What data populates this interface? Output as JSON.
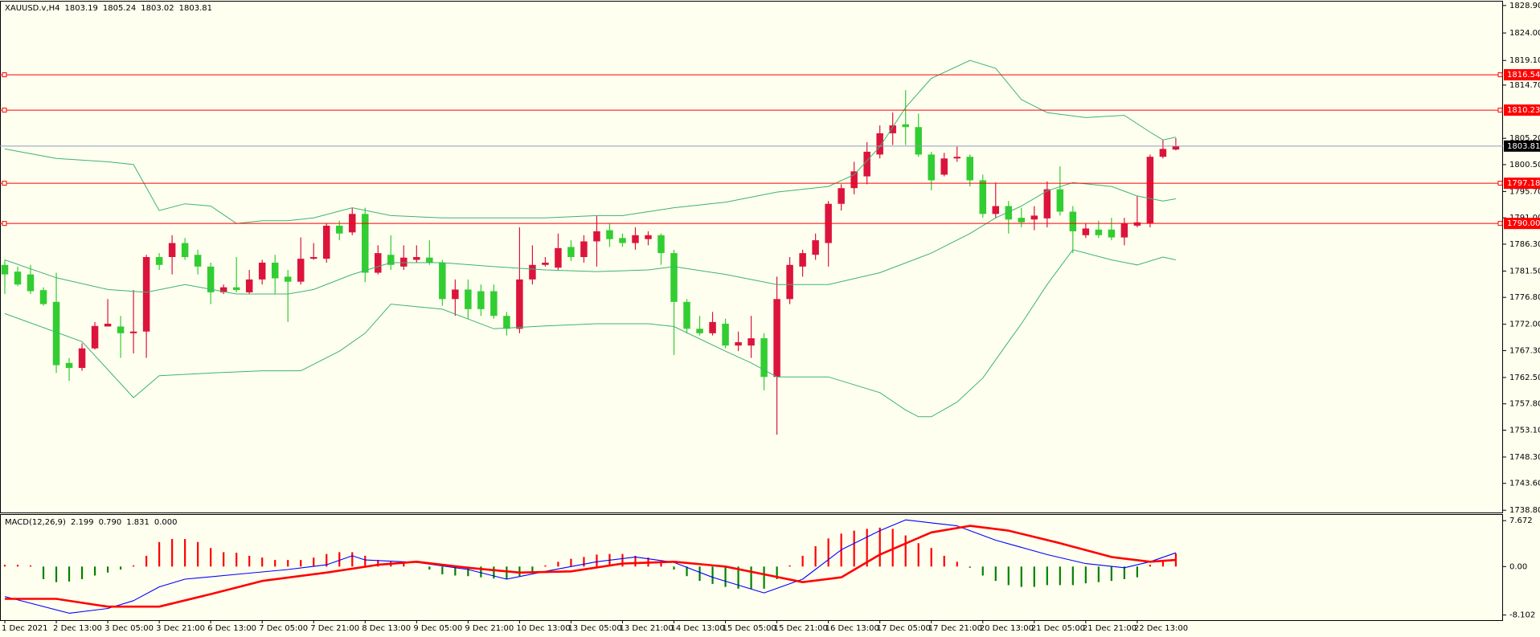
{
  "chart_data": [
    {
      "type": "candlestick",
      "symbol": "XAUUSD.v,H4",
      "header_values": [
        "1803.19",
        "1805.24",
        "1803.02",
        "1803.81"
      ],
      "categories": [
        "1 Dec 2021",
        null,
        null,
        null,
        "2 Dec 13:00",
        null,
        null,
        null,
        "3 Dec 05:00",
        null,
        null,
        null,
        "3 Dec 21:00",
        null,
        null,
        null,
        "6 Dec 13:00",
        null,
        null,
        null,
        "7 Dec 05:00",
        null,
        null,
        null,
        "7 Dec 21:00",
        null,
        null,
        null,
        "8 Dec 13:00",
        null,
        null,
        null,
        "9 Dec 05:00",
        null,
        null,
        null,
        "9 Dec 21:00",
        null,
        null,
        null,
        "10 Dec 13:00",
        null,
        null,
        null,
        "13 Dec 05:00",
        null,
        null,
        null,
        "13 Dec 21:00",
        null,
        null,
        null,
        "14 Dec 13:00",
        null,
        null,
        null,
        "15 Dec 05:00",
        null,
        null,
        null,
        "15 Dec 21:00",
        null,
        null,
        null,
        "16 Dec 13:00",
        null,
        null,
        null,
        "17 Dec 05:00",
        null,
        null,
        null,
        "17 Dec 21:00",
        null,
        null,
        null,
        "20 Dec 13:00",
        null,
        null,
        null,
        "21 Dec 05:00",
        null,
        null,
        null,
        "21 Dec 21:00",
        null,
        null,
        null,
        "22 Dec 13:00",
        null,
        null,
        null
      ],
      "open": [
        1782.6,
        1781.4,
        1780.9,
        1778.1,
        1776.0,
        1765.1,
        1764.2,
        1767.7,
        1771.6,
        1771.6,
        1770.4,
        1770.7,
        1784.0,
        1784.0,
        1786.5,
        1784.4,
        1782.3,
        1777.7,
        1778.6,
        1777.7,
        1780.0,
        1783.0,
        1780.5,
        1779.6,
        1783.7,
        1783.7,
        1789.6,
        1788.4,
        1791.7,
        1781.2,
        1784.4,
        1782.3,
        1783.5,
        1783.9,
        1783.0,
        1776.5,
        1778.2,
        1777.9,
        1777.9,
        1773.5,
        1771.2,
        1780.0,
        1782.6,
        1782.1,
        1785.8,
        1784.0,
        1786.8,
        1788.8,
        1787.4,
        1786.5,
        1787.2,
        1787.9,
        1784.7,
        1776.0,
        1771.2,
        1770.4,
        1772.1,
        1768.2,
        1768.2,
        1769.5,
        1762.6,
        1776.5,
        1782.3,
        1784.4,
        1786.5,
        1793.5,
        1796.3,
        1798.4,
        1802.3,
        1806.1,
        1807.7,
        1807.2,
        1802.3,
        1798.7,
        1801.6,
        1801.9,
        1797.7,
        1791.7,
        1793.1,
        1791.0,
        1790.7,
        1790.9,
        1796.1,
        1792.1,
        1787.9,
        1788.9,
        1788.9,
        1787.5,
        1789.6,
        1790.0,
        1801.9,
        1803.19
      ],
      "high": [
        1783.5,
        1782.3,
        1782.6,
        1778.6,
        1781.2,
        1766.0,
        1768.6,
        1772.4,
        1776.5,
        1773.5,
        1778.1,
        1784.4,
        1784.7,
        1787.9,
        1787.4,
        1785.3,
        1783.0,
        1779.1,
        1784.0,
        1781.7,
        1783.5,
        1784.4,
        1781.7,
        1787.5,
        1786.5,
        1790.0,
        1790.5,
        1792.8,
        1792.8,
        1786.1,
        1787.9,
        1786.1,
        1786.1,
        1787.0,
        1783.5,
        1780.0,
        1780.0,
        1779.1,
        1779.1,
        1774.2,
        1789.3,
        1786.1,
        1784.0,
        1788.2,
        1787.0,
        1787.9,
        1791.4,
        1790.0,
        1788.2,
        1789.3,
        1788.6,
        1788.2,
        1785.3,
        1776.5,
        1773.5,
        1774.2,
        1773.0,
        1770.7,
        1773.5,
        1770.4,
        1780.5,
        1784.0,
        1785.3,
        1788.2,
        1794.0,
        1797.0,
        1801.0,
        1804.5,
        1807.5,
        1809.8,
        1813.8,
        1809.6,
        1802.8,
        1802.6,
        1803.7,
        1802.3,
        1798.7,
        1797.3,
        1794.0,
        1792.8,
        1793.1,
        1797.5,
        1800.2,
        1793.1,
        1790.0,
        1790.5,
        1791.0,
        1791.0,
        1794.9,
        1802.3,
        1804.9,
        1805.24
      ],
      "low": [
        1777.4,
        1778.8,
        1777.4,
        1775.3,
        1763.3,
        1761.9,
        1763.7,
        1767.5,
        1771.6,
        1766.0,
        1766.8,
        1766.0,
        1781.7,
        1780.9,
        1783.5,
        1780.9,
        1775.6,
        1777.4,
        1777.7,
        1777.4,
        1779.1,
        1777.4,
        1772.4,
        1779.1,
        1783.5,
        1783.0,
        1787.0,
        1787.9,
        1779.5,
        1780.9,
        1781.7,
        1781.7,
        1783.0,
        1782.6,
        1775.3,
        1773.5,
        1773.0,
        1773.5,
        1773.0,
        1770.0,
        1770.4,
        1779.1,
        1782.3,
        1781.7,
        1783.3,
        1783.0,
        1782.3,
        1785.8,
        1785.8,
        1785.3,
        1786.1,
        1782.6,
        1766.5,
        1770.4,
        1770.0,
        1770.0,
        1767.7,
        1767.2,
        1766.0,
        1760.2,
        1752.3,
        1775.6,
        1780.5,
        1783.5,
        1782.3,
        1792.3,
        1795.2,
        1797.0,
        1801.6,
        1804.0,
        1804.0,
        1801.9,
        1795.9,
        1798.4,
        1801.0,
        1796.6,
        1791.0,
        1791.0,
        1788.2,
        1789.3,
        1788.8,
        1789.3,
        1791.4,
        1784.7,
        1787.4,
        1787.4,
        1787.0,
        1786.1,
        1789.3,
        1789.3,
        1801.6,
        1803.02
      ],
      "close": [
        1780.9,
        1779.1,
        1777.9,
        1775.6,
        1764.7,
        1764.2,
        1767.7,
        1771.7,
        1772.1,
        1770.4,
        1770.7,
        1784.0,
        1782.6,
        1786.5,
        1784.0,
        1782.3,
        1777.7,
        1778.6,
        1778.1,
        1780.0,
        1783.0,
        1780.2,
        1779.6,
        1783.7,
        1784.0,
        1789.6,
        1788.2,
        1791.7,
        1781.2,
        1784.7,
        1782.6,
        1783.9,
        1784.0,
        1783.0,
        1776.5,
        1778.2,
        1774.7,
        1774.7,
        1773.5,
        1771.2,
        1780.0,
        1782.6,
        1783.0,
        1785.6,
        1784.0,
        1786.8,
        1788.6,
        1787.2,
        1786.5,
        1787.9,
        1787.9,
        1784.7,
        1776.0,
        1771.2,
        1770.4,
        1772.4,
        1768.2,
        1768.8,
        1769.5,
        1762.6,
        1776.5,
        1782.6,
        1784.7,
        1787.0,
        1793.5,
        1796.3,
        1799.3,
        1802.8,
        1806.1,
        1807.5,
        1807.2,
        1802.3,
        1797.7,
        1801.6,
        1801.9,
        1797.7,
        1791.7,
        1793.1,
        1790.7,
        1790.2,
        1791.4,
        1796.1,
        1792.1,
        1788.6,
        1789.1,
        1787.9,
        1787.5,
        1790.0,
        1790.2,
        1801.9,
        1803.3,
        1803.81
      ],
      "up_color": "#dc143c",
      "down_color": "#32cd32",
      "bands": [
        {
          "color": "#3cb371",
          "x": [
            0,
            4,
            8,
            10,
            12,
            14,
            16,
            18,
            20,
            22,
            24,
            27,
            30,
            34,
            38,
            42,
            46,
            48,
            52,
            56,
            60,
            64,
            66,
            68,
            70,
            72,
            75,
            77,
            79,
            81,
            84,
            87,
            89,
            90,
            91
          ],
          "values": [
            1803.3,
            1801.6,
            1801.0,
            1800.5,
            1792.3,
            1793.5,
            1793.1,
            1790.0,
            1790.5,
            1790.5,
            1791.0,
            1792.8,
            1791.4,
            1791.0,
            1791.0,
            1791.0,
            1791.4,
            1791.4,
            1792.8,
            1793.8,
            1795.6,
            1796.6,
            1798.7,
            1803.7,
            1810.7,
            1815.9,
            1819.1,
            1817.7,
            1812.1,
            1809.8,
            1808.9,
            1809.3,
            1806.3,
            1804.9,
            1805.4
          ]
        },
        {
          "color": "#3cb371",
          "x": [
            0,
            4,
            8,
            11,
            14,
            18,
            22,
            24,
            27,
            30,
            34,
            38,
            42,
            46,
            50,
            52,
            56,
            60,
            64,
            68,
            72,
            75,
            77,
            79,
            81,
            83,
            86,
            88,
            90,
            91
          ],
          "values": [
            1783.5,
            1780.3,
            1778.2,
            1777.7,
            1779.1,
            1777.4,
            1777.4,
            1778.2,
            1780.9,
            1783.0,
            1783.0,
            1782.3,
            1781.7,
            1781.4,
            1781.7,
            1782.3,
            1780.9,
            1779.1,
            1779.1,
            1781.2,
            1784.7,
            1788.2,
            1791.0,
            1793.1,
            1795.8,
            1797.3,
            1796.6,
            1794.9,
            1794.0,
            1794.4
          ]
        },
        {
          "color": "#3cb371",
          "x": [
            0,
            6,
            10,
            12,
            16,
            20,
            23,
            26,
            28,
            30,
            34,
            38,
            42,
            46,
            50,
            52,
            56,
            58,
            60,
            64,
            68,
            70,
            71,
            72,
            74,
            76,
            78,
            79,
            81,
            83,
            86,
            88,
            90,
            91
          ],
          "values": [
            1773.9,
            1768.9,
            1758.9,
            1762.8,
            1763.3,
            1763.7,
            1763.7,
            1767.2,
            1770.4,
            1775.6,
            1774.7,
            1771.2,
            1771.7,
            1772.1,
            1772.1,
            1771.6,
            1767.2,
            1765.1,
            1762.6,
            1762.6,
            1759.8,
            1756.7,
            1755.5,
            1755.5,
            1758.1,
            1762.4,
            1768.9,
            1772.1,
            1779.1,
            1785.3,
            1783.5,
            1782.6,
            1784.0,
            1783.5
          ]
        }
      ],
      "levels": [
        1816.54,
        1810.23,
        1797.18,
        {
          "value": 1790,
          "label": "1790.00"
        }
      ],
      "level_color": "#ff0000",
      "current_price": 1803.81,
      "current_color": "#8e9bb4",
      "ylim": [
        1738.4,
        1829.6
      ],
      "yticks": [
        {
          "value": 1828.9,
          "label": "1828.90"
        },
        {
          "value": 1824,
          "label": "1824.00"
        },
        {
          "value": 1819.1,
          "label": "1819.10"
        },
        {
          "value": 1814.7,
          "label": "1814.70"
        },
        {
          "value": 1805.2,
          "label": "1805.20"
        },
        {
          "value": 1800.5,
          "label": "1800.50"
        },
        {
          "value": 1795.7,
          "label": "1795.70"
        },
        {
          "value": 1791,
          "label": "1791.00"
        },
        {
          "value": 1786.3,
          "label": "1786.30"
        },
        {
          "value": 1781.5,
          "label": "1781.50"
        },
        {
          "value": 1776.8,
          "label": "1776.80"
        },
        {
          "value": 1772,
          "label": "1772.00"
        },
        {
          "value": 1767.3,
          "label": "1767.30"
        },
        {
          "value": 1762.5,
          "label": "1762.50"
        },
        {
          "value": 1757.8,
          "label": "1757.80"
        },
        {
          "value": 1753.1,
          "label": "1753.10"
        },
        {
          "value": 1748.3,
          "label": "1748.30"
        },
        {
          "value": 1743.6,
          "label": "1743.60"
        },
        {
          "value": 1738.8,
          "label": "1738.80"
        }
      ]
    },
    {
      "type": "macd",
      "indicator_label": "MACD(12,26,9)",
      "indicator_values": [
        "2.199",
        "0.790",
        "1.831",
        "0.000"
      ],
      "histogram": {
        "up_color": "#ff0000",
        "down_color": "#008000",
        "values": [
          0.3,
          0.3,
          0.2,
          -2.1,
          -2.6,
          -2.5,
          -2.1,
          -1.5,
          -1.0,
          -0.5,
          0.2,
          1.8,
          4.1,
          4.6,
          4.6,
          4.1,
          3.1,
          2.4,
          2.3,
          1.8,
          1.5,
          1.1,
          1.1,
          1.1,
          1.5,
          2.1,
          2.4,
          2.4,
          1.8,
          1.1,
          0.8,
          0.5,
          0.0,
          -0.5,
          -1.3,
          -1.5,
          -1.6,
          -1.8,
          -2.0,
          -2.1,
          -1.6,
          -1.1,
          0.2,
          0.8,
          1.3,
          1.6,
          2.0,
          2.1,
          2.1,
          1.8,
          1.5,
          0.8,
          -0.5,
          -1.6,
          -2.4,
          -2.9,
          -3.4,
          -3.7,
          -3.7,
          -3.7,
          -2.1,
          0.2,
          1.8,
          3.4,
          4.7,
          5.5,
          6.0,
          6.3,
          6.5,
          6.3,
          5.2,
          3.9,
          3.1,
          1.8,
          0.8,
          -0.2,
          -1.5,
          -2.4,
          -3.1,
          -3.4,
          -3.4,
          -3.1,
          -3.1,
          -3.1,
          -2.8,
          -2.6,
          -2.4,
          -2.1,
          -1.8,
          0.3,
          1.1,
          2.2
        ]
      },
      "series": [
        {
          "color": "#0000ff",
          "x": [
            0,
            5,
            8,
            10,
            12,
            14,
            18,
            22,
            25,
            27,
            28,
            32,
            36,
            39,
            42,
            46,
            49,
            52,
            55,
            59,
            62,
            65,
            68,
            70,
            72,
            74,
            77,
            81,
            84,
            87,
            89,
            91
          ],
          "values": [
            -5.0,
            -7.8,
            -7.0,
            -5.7,
            -3.4,
            -2.1,
            -1.3,
            -0.5,
            0.3,
            1.8,
            1.1,
            0.7,
            -0.5,
            -2.1,
            -0.8,
            0.8,
            1.6,
            0.7,
            -1.8,
            -4.4,
            -2.1,
            2.8,
            6.0,
            7.8,
            7.3,
            6.8,
            4.4,
            2.0,
            0.5,
            -0.2,
            0.8,
            2.3
          ]
        },
        {
          "color": "#ff0000",
          "x": [
            0,
            4,
            8,
            12,
            16,
            20,
            25,
            29,
            32,
            36,
            40,
            44,
            48,
            52,
            56,
            59,
            62,
            65,
            68,
            72,
            75,
            78,
            82,
            86,
            89,
            91
          ],
          "values": [
            -5.4,
            -5.4,
            -6.7,
            -6.7,
            -4.6,
            -2.4,
            -1.0,
            0.3,
            0.8,
            -0.2,
            -1.0,
            -0.8,
            0.5,
            0.8,
            0.0,
            -1.3,
            -2.6,
            -1.8,
            2.0,
            5.7,
            6.8,
            6.0,
            3.9,
            1.6,
            0.8,
            1.1
          ]
        }
      ],
      "ylim": [
        -8.95,
        8.63
      ],
      "yticks": [
        7.672,
        {
          "value": 0,
          "label": "0.00"
        },
        -8.102
      ]
    }
  ]
}
